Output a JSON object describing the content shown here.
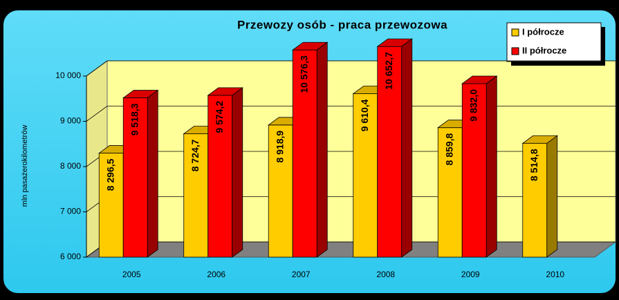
{
  "chart_data": {
    "type": "bar",
    "title": "Przewozy osób - praca przewozowa",
    "y_label": "mln pasażerokilometrów",
    "categories": [
      "2005",
      "2006",
      "2007",
      "2008",
      "2009",
      "2010"
    ],
    "series": [
      {
        "name": "I półrocze",
        "color": "#ffcc00",
        "values": [
          8296.5,
          8724.7,
          8918.9,
          9610.4,
          8859.8,
          8514.8
        ],
        "value_labels": [
          "8 296,5",
          "8 724,7",
          "8 918,9",
          "9 610,4",
          "8 859,8",
          "8 514,8"
        ]
      },
      {
        "name": "II półrocze",
        "color": "#ff0000",
        "values": [
          9518.3,
          9574.2,
          10576.3,
          10652.7,
          9832.0,
          null
        ],
        "value_labels": [
          "9 518,3",
          "9 574,2",
          "10 576,3",
          "10 652,7",
          "9 832,0",
          null
        ]
      }
    ],
    "ylim": [
      6000,
      10000
    ],
    "yticks": [
      {
        "value": 6000,
        "label": "6 000"
      },
      {
        "value": 7000,
        "label": "7 000"
      },
      {
        "value": 8000,
        "label": "8 000"
      },
      {
        "value": 9000,
        "label": "9 000"
      },
      {
        "value": 10000,
        "label": "10 000"
      }
    ],
    "grid": true,
    "legend": "top-right"
  }
}
